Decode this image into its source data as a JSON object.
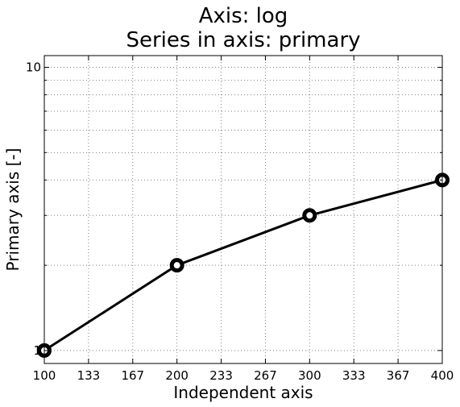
{
  "chart_data": {
    "type": "line",
    "title_lines": [
      "Axis: log",
      "Series in axis: primary"
    ],
    "xlabel": "Independent axis",
    "ylabel": "Primary axis [-]",
    "xlim": [
      100,
      400
    ],
    "ylim": [
      0.9,
      11
    ],
    "y_scale": "log",
    "grid": true,
    "x_tick_labels": [
      "100",
      "133",
      "167",
      "200",
      "233",
      "267",
      "300",
      "333",
      "367",
      "400"
    ],
    "y_tick_labels": [
      "1",
      "10"
    ],
    "series": [
      {
        "x": [
          100,
          200,
          300,
          400
        ],
        "y": [
          1,
          2,
          3,
          4
        ],
        "color": "#000000",
        "marker": "circle"
      }
    ]
  }
}
